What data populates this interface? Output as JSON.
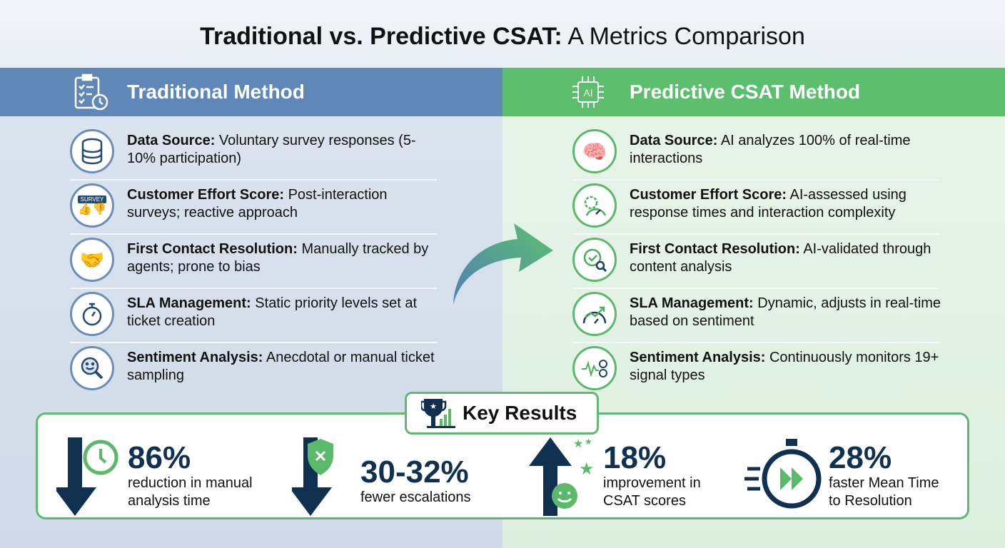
{
  "title": {
    "bold": "Traditional vs. Predictive CSAT:",
    "rest": " A Metrics Comparison"
  },
  "colors": {
    "traditional": "#5f87b8",
    "predictive": "#5dbf6d",
    "navy": "#10304f",
    "green": "#5cb86b"
  },
  "traditional": {
    "title": "Traditional Method",
    "icon": "clipboard-clock-icon",
    "rows": [
      {
        "icon": "database-icon",
        "label": "Data Source:",
        "text": " Voluntary survey responses (5-10% participation)"
      },
      {
        "icon": "survey-thumbs-icon",
        "icon_text": "SURVEY",
        "label": "Customer Effort Score:",
        "text": " Post-interaction surveys; reactive approach"
      },
      {
        "icon": "handshake-icon",
        "label": "First Contact Resolution:",
        "text": " Manually tracked by agents; prone to bias"
      },
      {
        "icon": "stopwatch-icon",
        "label": "SLA Management:",
        "text": " Static priority levels set at ticket creation"
      },
      {
        "icon": "magnifier-smile-icon",
        "label": "Sentiment Analysis:",
        "text": " Anecdotal or manual ticket sampling"
      }
    ]
  },
  "predictive": {
    "title": "Predictive CSAT Method",
    "icon": "ai-chip-icon",
    "icon_text": "AI",
    "rows": [
      {
        "icon": "brain-network-icon",
        "label": "Data Source:",
        "text": " AI analyzes 100% of real-time interactions"
      },
      {
        "icon": "gear-gauge-icon",
        "label": "Customer Effort Score:",
        "text": " AI-assessed using response times and interaction complexity"
      },
      {
        "icon": "check-magnifier-icon",
        "label": "First Contact Resolution:",
        "text": " AI-validated through content analysis"
      },
      {
        "icon": "gauge-trend-icon",
        "label": "SLA Management:",
        "text": " Dynamic, adjusts in real-time based on sentiment"
      },
      {
        "icon": "waveform-icon",
        "label": "Sentiment Analysis:",
        "text": " Continuously monitors 19+ signal types"
      }
    ]
  },
  "key_results": {
    "title": "Key Results",
    "icon": "trophy-chart-icon",
    "stats": [
      {
        "icon": "down-arrow-clock-icon",
        "value": "86%",
        "line1": "reduction in manual",
        "line2": "analysis time"
      },
      {
        "icon": "down-arrow-shield-icon",
        "value": "30-32%",
        "line1": "fewer escalations",
        "line2": ""
      },
      {
        "icon": "up-arrow-smile-stars-icon",
        "value": "18%",
        "line1": "improvement in",
        "line2": "CSAT scores"
      },
      {
        "icon": "stopwatch-fast-forward-icon",
        "value": "28%",
        "line1": "faster Mean Time",
        "line2": "to Resolution"
      }
    ]
  }
}
